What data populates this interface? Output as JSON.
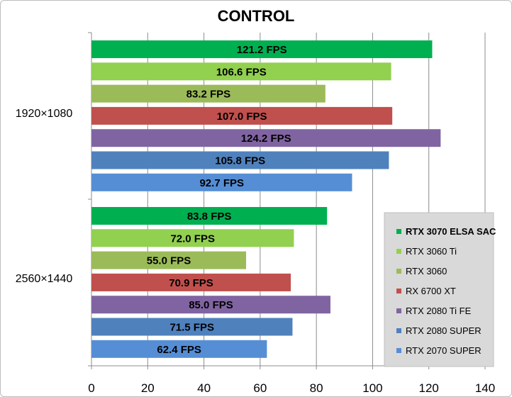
{
  "chart_data": {
    "type": "bar",
    "orientation": "horizontal",
    "title": "CONTROL",
    "xlabel": "",
    "ylabel": "",
    "xlim": [
      0,
      140
    ],
    "xticks": [
      "0",
      "20",
      "40",
      "60",
      "80",
      "100",
      "120",
      "140"
    ],
    "grid": "vertical",
    "legend_position": "right",
    "categories": [
      "1920×1080",
      "2560×1440"
    ],
    "series": [
      {
        "name": "RTX 3070 ELSA SAC",
        "color": "#00b050",
        "values": [
          121.2,
          83.8
        ],
        "labels": [
          "121.2 FPS",
          "83.8 FPS"
        ]
      },
      {
        "name": "RTX 3060 Ti",
        "color": "#92d050",
        "values": [
          106.6,
          72.0
        ],
        "labels": [
          "106.6 FPS",
          "72.0 FPS"
        ]
      },
      {
        "name": "RTX 3060",
        "color": "#9bbb59",
        "values": [
          83.2,
          55.0
        ],
        "labels": [
          "83.2 FPS",
          "55.0 FPS"
        ]
      },
      {
        "name": "RX 6700 XT",
        "color": "#c0504d",
        "values": [
          107.0,
          70.9
        ],
        "labels": [
          "107.0 FPS",
          "70.9 FPS"
        ]
      },
      {
        "name": "RTX 2080 Ti FE",
        "color": "#8064a2",
        "values": [
          124.2,
          85.0
        ],
        "labels": [
          "124.2 FPS",
          "85.0 FPS"
        ]
      },
      {
        "name": "RTX 2080 SUPER",
        "color": "#4f81bd",
        "values": [
          105.8,
          71.5
        ],
        "labels": [
          "105.8 FPS",
          "71.5 FPS"
        ]
      },
      {
        "name": "RTX 2070 SUPER",
        "color": "#558ed5",
        "values": [
          92.7,
          62.4
        ],
        "labels": [
          "92.7 FPS",
          "62.4 FPS"
        ]
      }
    ]
  }
}
